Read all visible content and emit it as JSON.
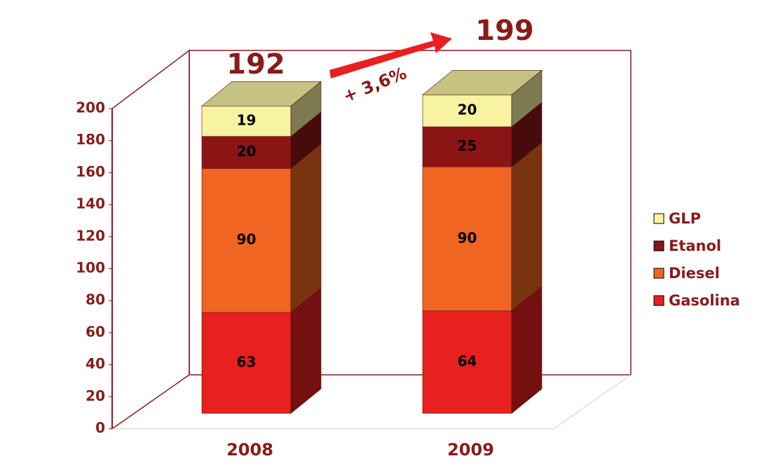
{
  "chart_data": {
    "type": "bar3d_stacked",
    "categories": [
      "2008",
      "2009"
    ],
    "series": [
      {
        "name": "Gasolina",
        "color": "#e8201f",
        "values": [
          63,
          64
        ]
      },
      {
        "name": "Diesel",
        "color": "#f06522",
        "values": [
          90,
          90
        ]
      },
      {
        "name": "Etanol",
        "color": "#8b1515",
        "values": [
          20,
          25
        ]
      },
      {
        "name": "GLP",
        "color": "#f7f3a1",
        "values": [
          19,
          20
        ]
      }
    ],
    "totals": [
      192,
      199
    ],
    "growth_label": "+ 3,6%",
    "ylim": [
      0,
      200
    ],
    "yticks": [
      0,
      20,
      40,
      60,
      80,
      100,
      120,
      140,
      160,
      180,
      200
    ],
    "legend": "right"
  }
}
